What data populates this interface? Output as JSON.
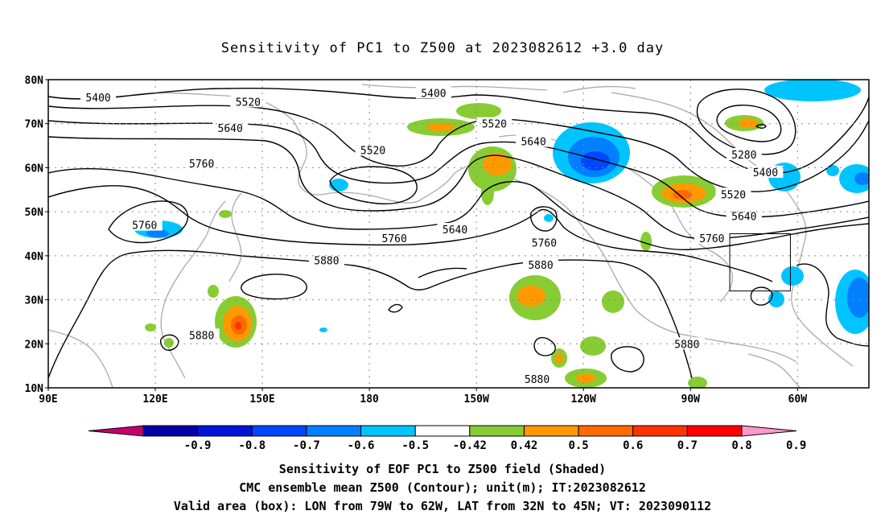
{
  "title": "Sensitivity of PC1 to Z500 at 2023082612 +3.0 day",
  "axes": {
    "lat_labels": [
      "80N",
      "70N",
      "60N",
      "50N",
      "40N",
      "30N",
      "20N",
      "10N"
    ],
    "lat_values": [
      80,
      70,
      60,
      50,
      40,
      30,
      20,
      10
    ],
    "lon_labels": [
      "90E",
      "120E",
      "150E",
      "180",
      "150W",
      "120W",
      "90W",
      "60W"
    ],
    "lon_values": [
      90,
      120,
      150,
      180,
      210,
      240,
      270,
      300
    ],
    "lon_range": [
      90,
      320
    ],
    "lat_range": [
      10,
      80
    ]
  },
  "contour_labels": [
    {
      "text": "5400",
      "lon": 104,
      "lat": 76
    },
    {
      "text": "5520",
      "lon": 146,
      "lat": 75
    },
    {
      "text": "5400",
      "lon": 198,
      "lat": 77
    },
    {
      "text": "5640",
      "lon": 141,
      "lat": 69
    },
    {
      "text": "5520",
      "lon": 215,
      "lat": 70
    },
    {
      "text": "5640",
      "lon": 226,
      "lat": 66
    },
    {
      "text": "5280",
      "lon": 285,
      "lat": 63
    },
    {
      "text": "5760",
      "lon": 133,
      "lat": 61
    },
    {
      "text": "5520",
      "lon": 181,
      "lat": 64
    },
    {
      "text": "5400",
      "lon": 291,
      "lat": 59
    },
    {
      "text": "5520",
      "lon": 282,
      "lat": 54
    },
    {
      "text": "5640",
      "lon": 285,
      "lat": 49
    },
    {
      "text": "5760",
      "lon": 117,
      "lat": 47
    },
    {
      "text": "5640",
      "lon": 204,
      "lat": 46
    },
    {
      "text": "5760",
      "lon": 187,
      "lat": 44
    },
    {
      "text": "5760",
      "lon": 229,
      "lat": 43
    },
    {
      "text": "5760",
      "lon": 276,
      "lat": 44
    },
    {
      "text": "5880",
      "lon": 168,
      "lat": 39
    },
    {
      "text": "5880",
      "lon": 228,
      "lat": 38
    },
    {
      "text": "5880",
      "lon": 133,
      "lat": 22
    },
    {
      "text": "5880",
      "lon": 269,
      "lat": 20
    },
    {
      "text": "5880",
      "lon": 227,
      "lat": 12
    }
  ],
  "valid_box": {
    "lon_min": 281,
    "lon_max": 298,
    "lat_min": 32,
    "lat_max": 45
  },
  "colorbar": {
    "labels": [
      "-0.9",
      "-0.8",
      "-0.7",
      "-0.6",
      "-0.5",
      "-0.42",
      "0.42",
      "0.5",
      "0.6",
      "0.7",
      "0.8",
      "0.9"
    ],
    "colors": [
      "#c40070",
      "#0000a8",
      "#0014d8",
      "#0046ff",
      "#0080ff",
      "#00c4ff",
      "#ffffff",
      "#88cc33",
      "#ff9900",
      "#ff6a00",
      "#ff3300",
      "#ff0000",
      "#ff99cc"
    ]
  },
  "captions": {
    "line1": "Sensitivity of EOF PC1 to Z500 field (Shaded)",
    "line2": "CMC ensemble mean Z500 (Contour); unit(m); IT:2023082612",
    "line3": "Valid area (box): LON from 79W to 62W, LAT from 32N to 45N; VT: 2023090112"
  }
}
